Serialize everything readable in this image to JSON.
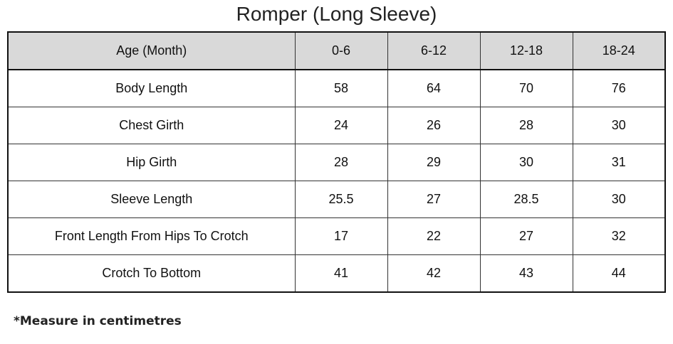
{
  "title": "Romper (Long Sleeve)",
  "header": [
    "Age (Month)",
    "0-6",
    "6-12",
    "12-18",
    "18-24"
  ],
  "rows": [
    [
      "Body Length",
      "58",
      "64",
      "70",
      "76"
    ],
    [
      "Chest Girth",
      "24",
      "26",
      "28",
      "30"
    ],
    [
      "Hip Girth",
      "28",
      "29",
      "30",
      "31"
    ],
    [
      "Sleeve Length",
      "25.5",
      "27",
      "28.5",
      "30"
    ],
    [
      "Front Length From Hips To Crotch",
      "17",
      "22",
      "27",
      "32"
    ],
    [
      "Crotch To Bottom",
      "41",
      "42",
      "43",
      "44"
    ]
  ],
  "note": "*Measure in centimetres",
  "colors": {
    "header_bg": "#d9d9d9",
    "border": "#111111"
  }
}
